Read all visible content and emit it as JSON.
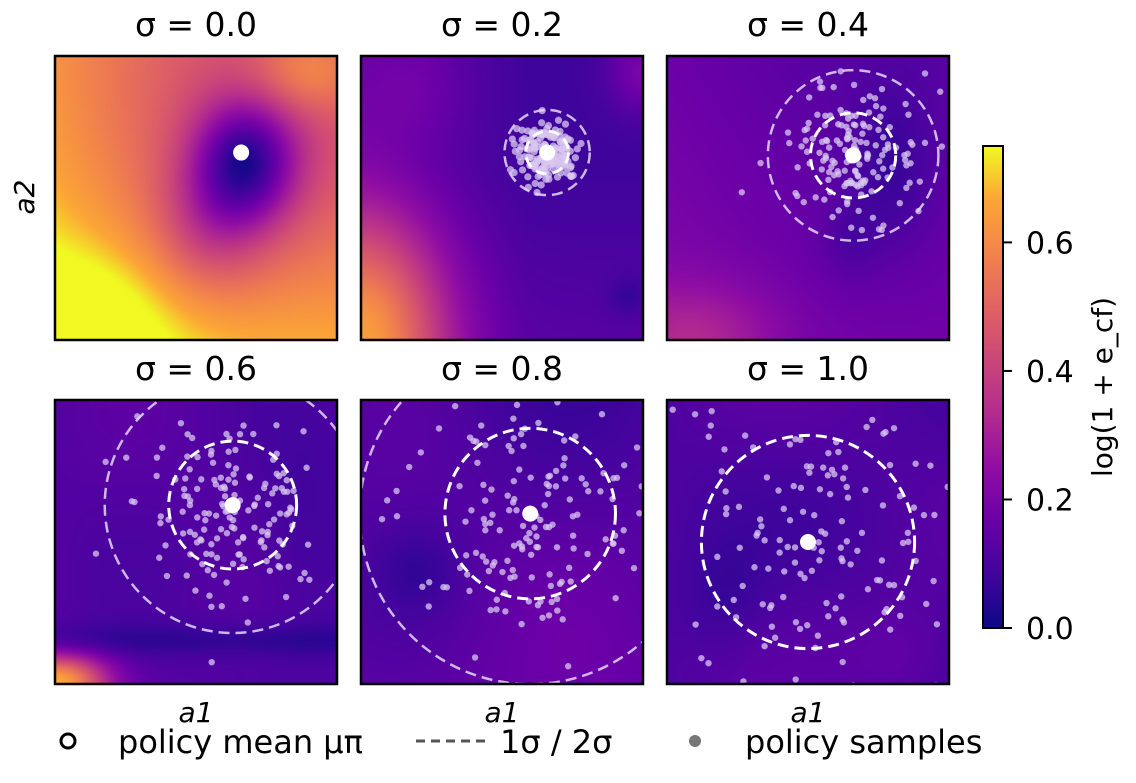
{
  "chart_data": {
    "type": "heatmap",
    "panels": [
      {
        "title": "σ = 0.0",
        "sigma": 0.0,
        "mean": [
          0.66,
          0.34
        ],
        "field": "p0"
      },
      {
        "title": "σ = 0.2",
        "sigma": 0.2,
        "mean": [
          0.66,
          0.34
        ],
        "field": "p1"
      },
      {
        "title": "σ = 0.4",
        "sigma": 0.4,
        "mean": [
          0.66,
          0.35
        ],
        "field": "p2"
      },
      {
        "title": "σ = 0.6",
        "sigma": 0.6,
        "mean": [
          0.63,
          0.37
        ],
        "field": "p3"
      },
      {
        "title": "σ = 0.8",
        "sigma": 0.8,
        "mean": [
          0.6,
          0.4
        ],
        "field": "p4"
      },
      {
        "title": "σ = 1.0",
        "sigma": 1.0,
        "mean": [
          0.5,
          0.5
        ],
        "field": "p5"
      }
    ],
    "xlabel": "a1",
    "ylabel": "a2",
    "colorbar": {
      "label": "log(1 + e_cf)",
      "range": [
        0.0,
        0.75
      ],
      "ticks": [
        "0.0",
        "0.2",
        "0.4",
        "0.6"
      ],
      "colormap": "plasma"
    },
    "legend": {
      "position": "bottom",
      "items": [
        {
          "marker": "open-circle",
          "label": "policy mean μπ"
        },
        {
          "marker": "dashed-line",
          "label": "1σ / 2σ"
        },
        {
          "marker": "grey-dot",
          "label": "policy samples"
        }
      ]
    },
    "colors": {
      "mean": "#ffffff",
      "samples": "#d9c8f0",
      "legend_dot": "#777777"
    }
  }
}
